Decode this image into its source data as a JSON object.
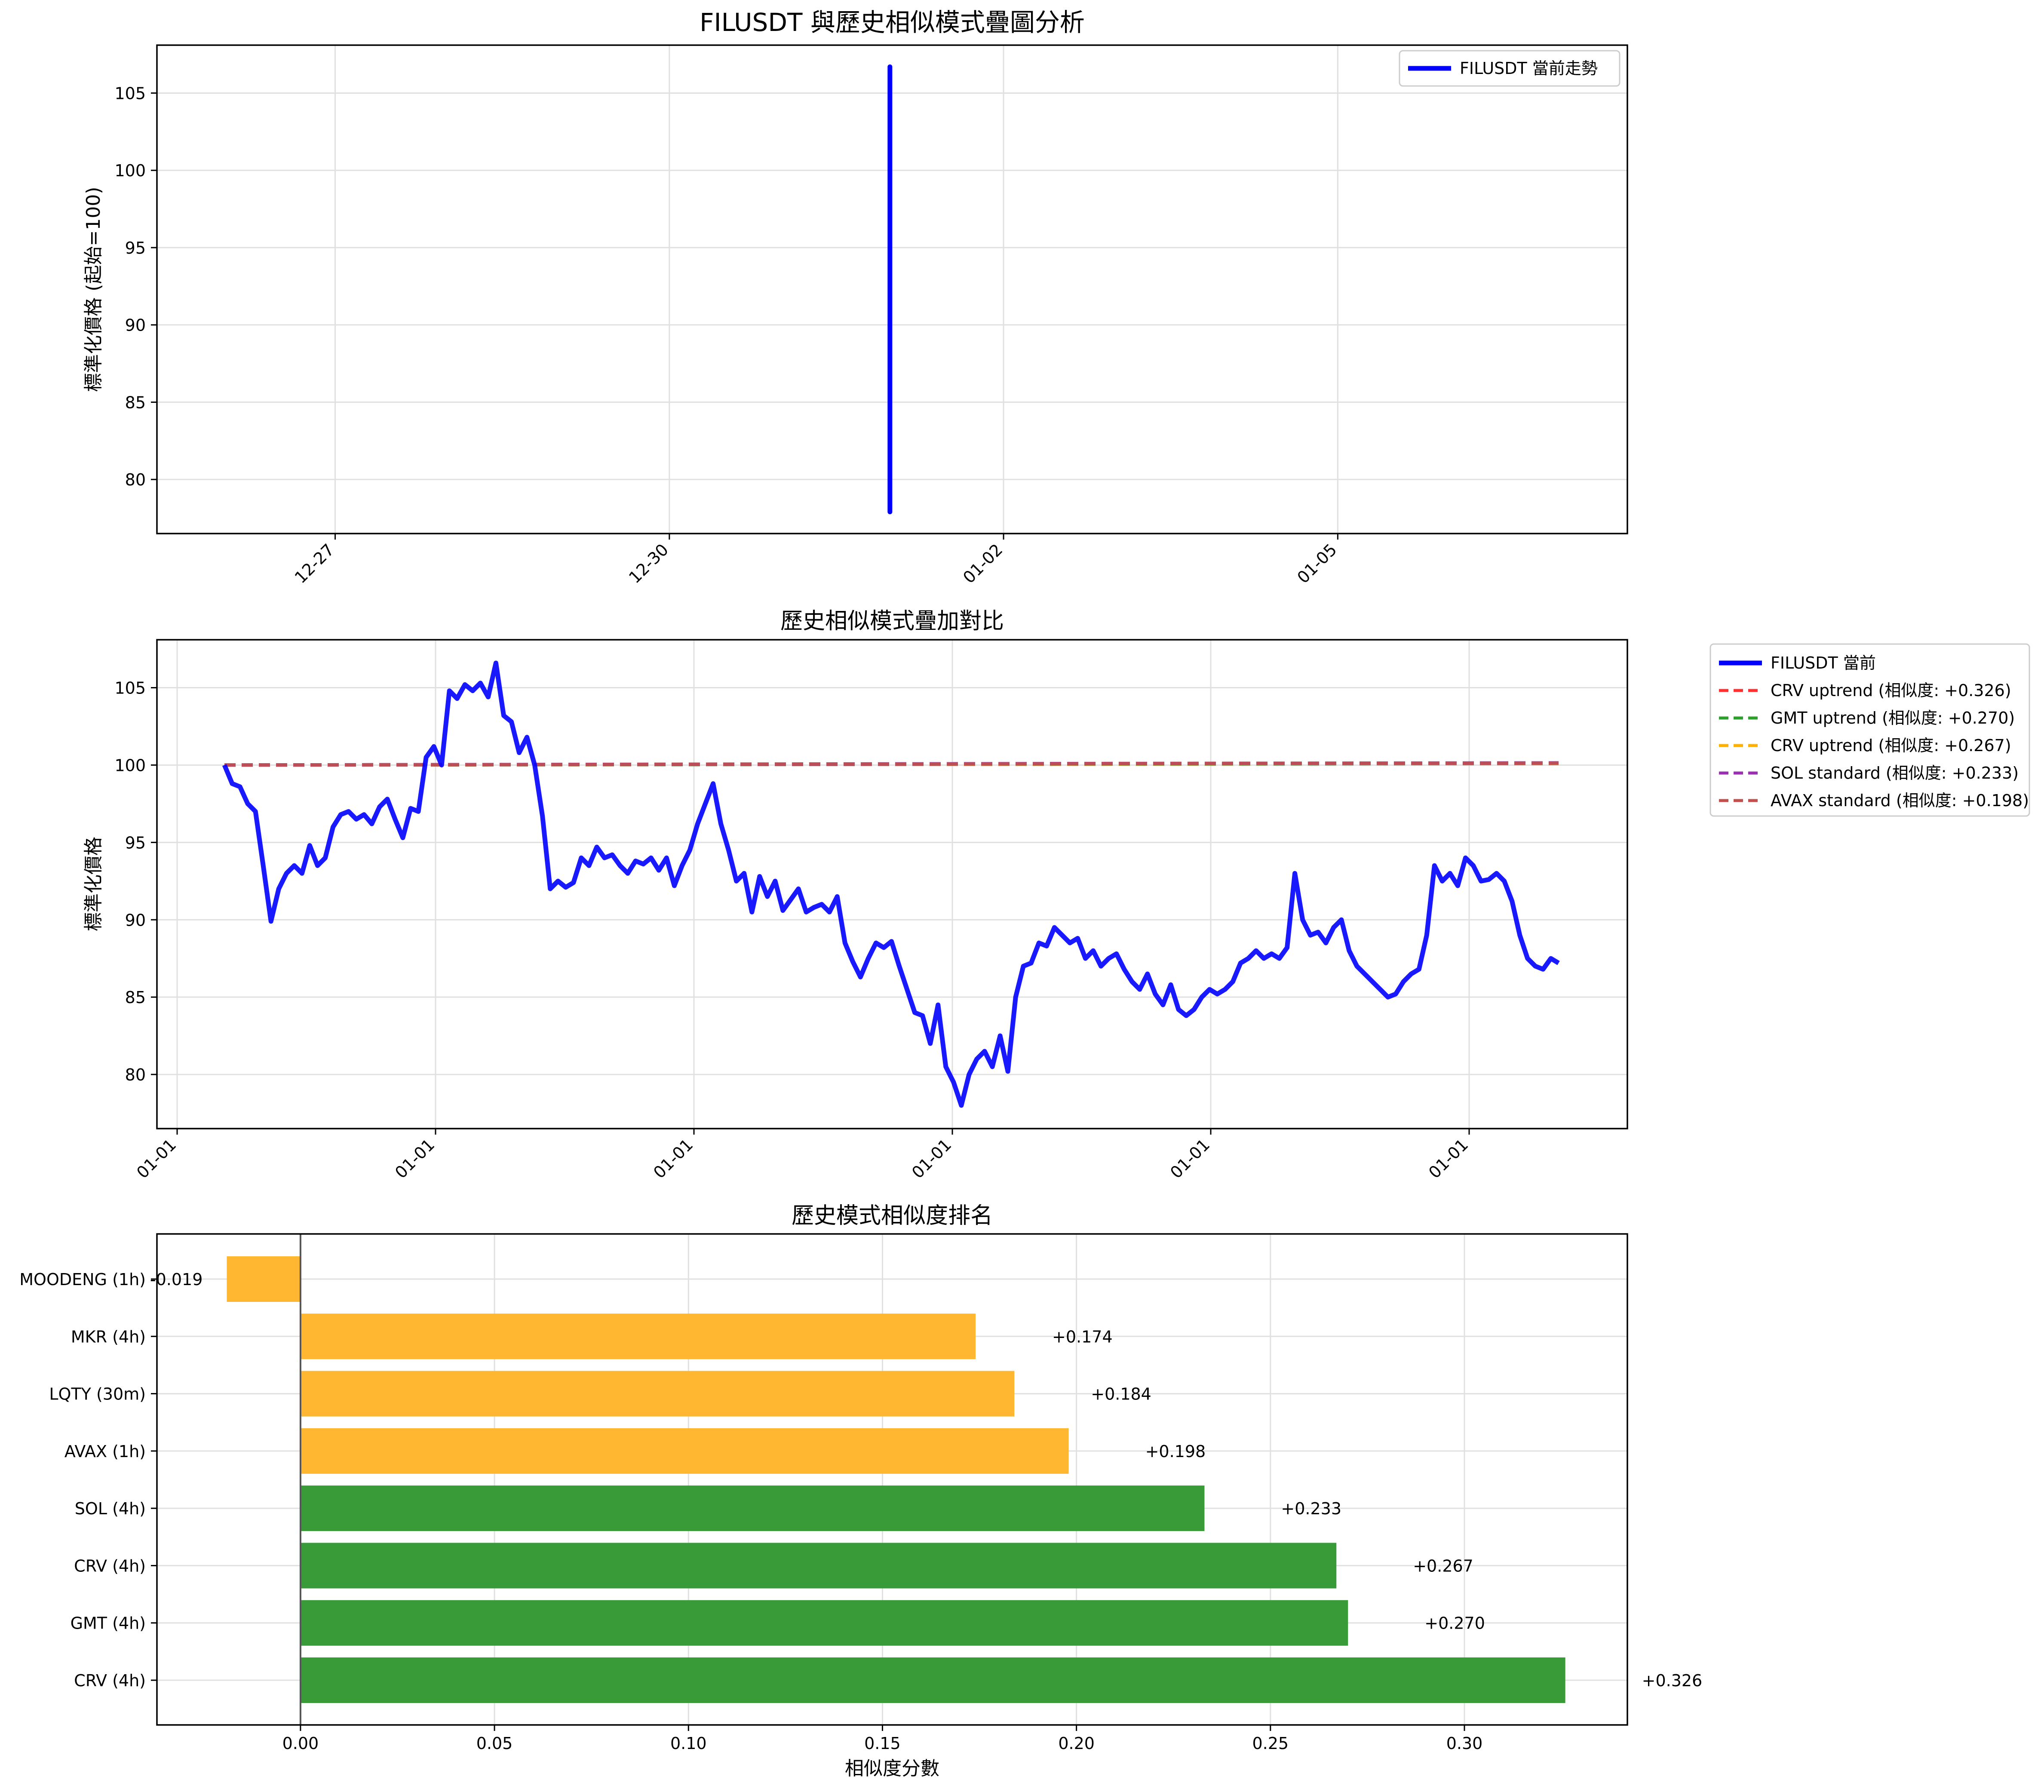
{
  "chart_data": [
    {
      "type": "line",
      "title": "FILUSDT 與歷史相似模式疊圖分析",
      "ylabel": "標準化價格 (起始=100)",
      "xlabel": "",
      "x_tick_labels": [
        "12-27",
        "12-30",
        "01-02",
        "01-05"
      ],
      "x_tick_days": [
        0,
        3,
        6,
        9
      ],
      "xlim_days": [
        -1.6,
        11.6
      ],
      "ylim": [
        76.5,
        108.1
      ],
      "y_ticks": [
        80,
        85,
        90,
        95,
        100,
        105
      ],
      "grid": true,
      "legend_position": "top-right",
      "series": [
        {
          "name": "FILUSDT 當前走勢",
          "color": "#0000ff",
          "x_day": 4.98,
          "y_range": [
            77.9,
            106.7
          ]
        }
      ]
    },
    {
      "type": "line",
      "title": "歷史相似模式疊加對比",
      "ylabel": "標準化價格",
      "xlabel": "",
      "x_tick_labels": [
        "01-01",
        "01-01",
        "01-01",
        "01-01",
        "01-01",
        "01-01"
      ],
      "ylim": [
        76.5,
        108.1
      ],
      "y_ticks": [
        80,
        85,
        90,
        95,
        100,
        105
      ],
      "grid": true,
      "legend_position": "outside-right",
      "series": [
        {
          "name": "FILUSDT 當前",
          "color": "#0000ff",
          "style": "solid",
          "values": [
            100,
            98.8,
            98.6,
            97.5,
            97,
            93.5,
            89.9,
            92,
            93,
            93.5,
            93,
            94.8,
            93.5,
            94,
            96,
            96.8,
            97,
            96.5,
            96.8,
            96.2,
            97.3,
            97.8,
            96.5,
            95.3,
            97.2,
            97,
            100.5,
            101.2,
            100,
            104.8,
            104.3,
            105.2,
            104.8,
            105.3,
            104.4,
            106.6,
            103.2,
            102.8,
            100.8,
            101.8,
            100,
            96.7,
            92,
            92.5,
            92.1,
            92.4,
            94,
            93.5,
            94.7,
            94,
            94.2,
            93.5,
            93,
            93.8,
            93.6,
            94,
            93.2,
            94,
            92.2,
            93.5,
            94.5,
            96.2,
            97.5,
            98.8,
            96.2,
            94.5,
            92.5,
            93,
            90.5,
            92.8,
            91.5,
            92.5,
            90.6,
            91.3,
            92,
            90.5,
            90.8,
            91,
            90.5,
            91.5,
            88.5,
            87.3,
            86.3,
            87.5,
            88.5,
            88.2,
            88.6,
            87,
            85.5,
            84,
            83.8,
            82,
            84.5,
            80.5,
            79.5,
            78,
            80,
            81,
            81.5,
            80.5,
            82.5,
            80.2,
            85,
            87,
            87.2,
            88.5,
            88.3,
            89.5,
            89,
            88.5,
            88.8,
            87.5,
            88,
            87,
            87.5,
            87.8,
            86.8,
            86,
            85.5,
            86.5,
            85.2,
            84.5,
            85.8,
            84.2,
            83.8,
            84.2,
            85,
            85.5,
            85.2,
            85.5,
            86,
            87.2,
            87.5,
            88,
            87.5,
            87.8,
            87.5,
            88.2,
            93,
            90,
            89,
            89.2,
            88.5,
            89.5,
            90,
            88,
            87,
            86.5,
            86,
            85.5,
            85,
            85.2,
            86,
            86.5,
            86.8,
            89,
            93.5,
            92.5,
            93,
            92.2,
            94,
            93.5,
            92.5,
            92.6,
            93,
            92.5,
            91.2,
            89,
            87.5,
            87,
            86.8,
            87.5,
            87.2
          ]
        },
        {
          "name": "CRV uptrend (相似度: +0.326)",
          "color": "#ff3030",
          "style": "dashed",
          "values": [
            100,
            100.04,
            100.08,
            100.12
          ]
        },
        {
          "name": "GMT uptrend (相似度: +0.270)",
          "color": "#2ca02c",
          "style": "dashed",
          "values": [
            100,
            100.03,
            100.06,
            100.1
          ]
        },
        {
          "name": "CRV uptrend (相似度: +0.267)",
          "color": "#ffb000",
          "style": "dashed",
          "values": [
            100,
            100.04,
            100.08,
            100.12
          ]
        },
        {
          "name": "SOL standard (相似度: +0.233)",
          "color": "#9b30b0",
          "style": "dashed",
          "values": [
            100,
            100.05,
            100.1,
            100.14
          ]
        },
        {
          "name": "AVAX standard (相似度: +0.198)",
          "color": "#c0504d",
          "style": "dashed",
          "values": [
            100,
            100.04,
            100.09,
            100.13
          ]
        }
      ]
    },
    {
      "type": "bar",
      "orientation": "horizontal",
      "title": "歷史模式相似度排名",
      "xlabel": "相似度分數",
      "ylabel": "",
      "xlim": [
        -0.037,
        0.342
      ],
      "x_ticks": [
        0.0,
        0.05,
        0.1,
        0.15,
        0.2,
        0.25,
        0.3
      ],
      "x_tick_labels": [
        "0.00",
        "0.05",
        "0.10",
        "0.15",
        "0.20",
        "0.25",
        "0.30"
      ],
      "grid": true,
      "categories": [
        "MOODENG (1h)",
        "MKR (4h)",
        "LQTY (30m)",
        "AVAX (1h)",
        "SOL (4h)",
        "CRV (4h)",
        "GMT (4h)",
        "CRV (4h)"
      ],
      "values": [
        -0.019,
        0.174,
        0.184,
        0.198,
        0.233,
        0.267,
        0.27,
        0.326
      ],
      "value_labels": [
        "-0.019",
        "+0.174",
        "+0.184",
        "+0.198",
        "+0.233",
        "+0.267",
        "+0.270",
        "+0.326"
      ],
      "colors": [
        "#ffb732",
        "#ffb732",
        "#ffb732",
        "#ffb732",
        "#389b38",
        "#389b38",
        "#389b38",
        "#389b38"
      ]
    }
  ]
}
